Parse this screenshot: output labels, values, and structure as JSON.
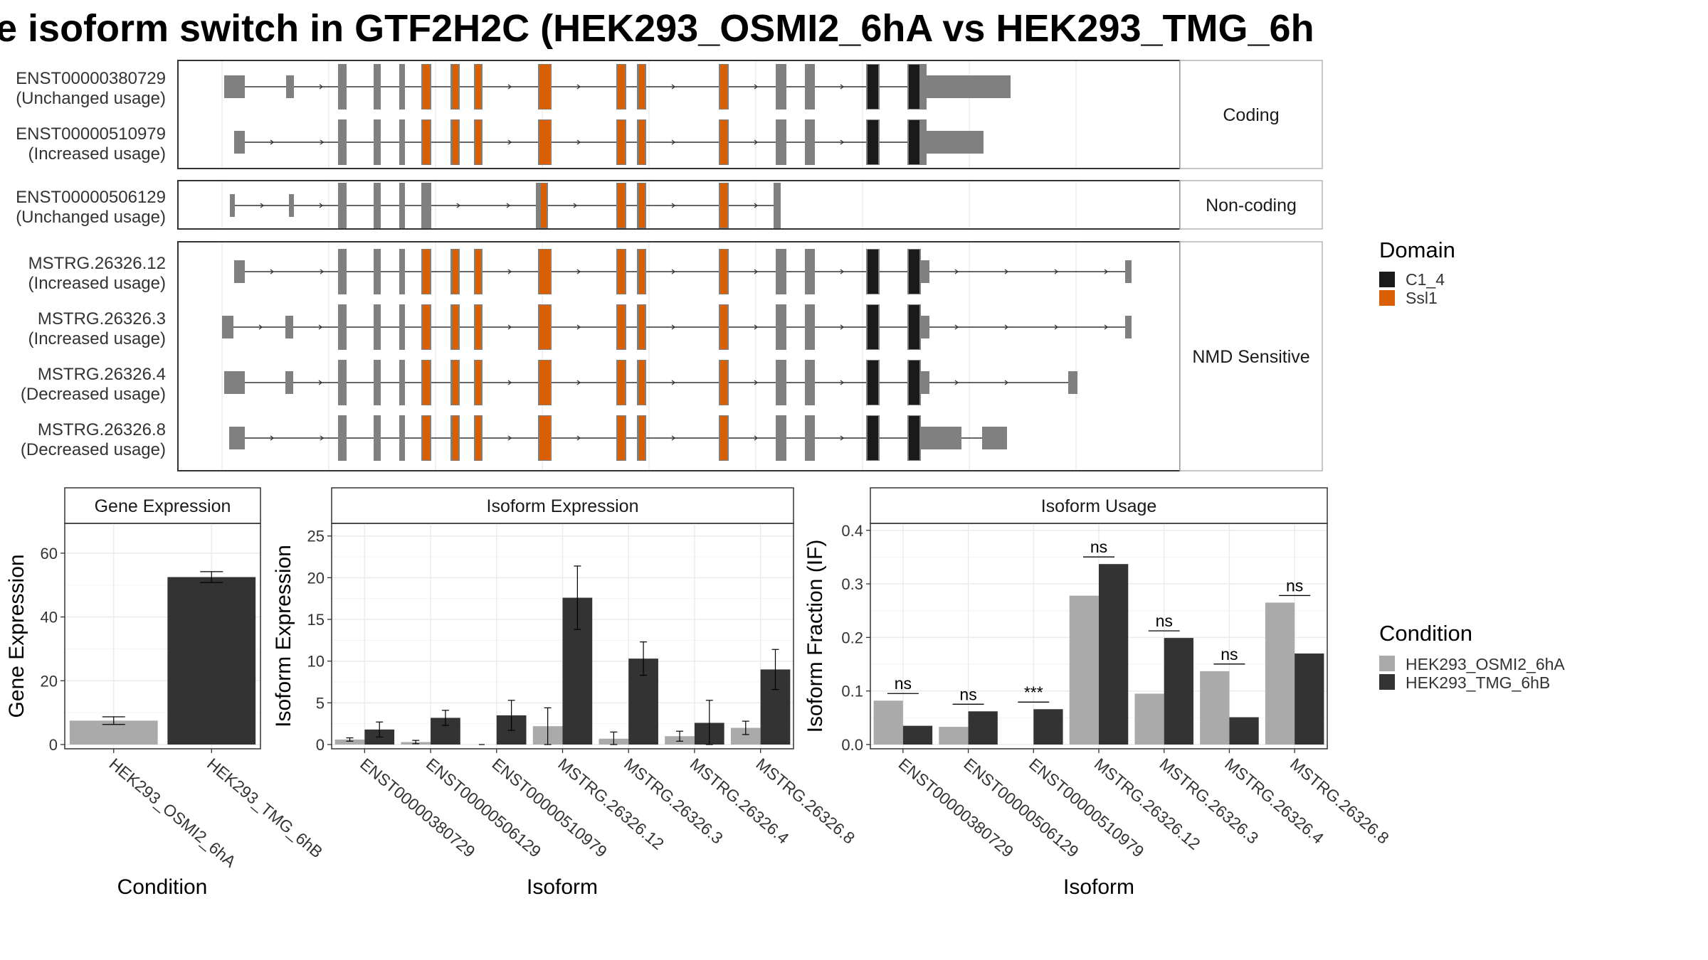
{
  "title": "e isoform switch in GTF2H2C (HEK293_OSMI2_6hA vs HEK293_TMG_6h",
  "colors": {
    "exon": "#808080",
    "C1_4": "#1a1a1a",
    "Ssl1": "#d95f02",
    "condA": "#aaaaaa",
    "condB": "#333333"
  },
  "structure": {
    "panels": [
      {
        "label": "Coding",
        "transcripts": [
          {
            "id": "ENST00000380729",
            "usage": "(Unchanged usage)"
          },
          {
            "id": "ENST00000510979",
            "usage": "(Increased usage)"
          }
        ]
      },
      {
        "label": "Non-coding",
        "transcripts": [
          {
            "id": "ENST00000506129",
            "usage": "(Unchanged usage)"
          }
        ]
      },
      {
        "label": "NMD Sensitive",
        "transcripts": [
          {
            "id": "MSTRG.26326.12",
            "usage": "(Increased usage)"
          },
          {
            "id": "MSTRG.26326.3",
            "usage": "(Increased usage)"
          },
          {
            "id": "MSTRG.26326.4",
            "usage": "(Decreased usage)"
          },
          {
            "id": "MSTRG.26326.8",
            "usage": "(Decreased usage)"
          }
        ]
      }
    ]
  },
  "legend_domain": {
    "title": "Domain",
    "items": [
      {
        "label": "C1_4",
        "color": "#1a1a1a"
      },
      {
        "label": "Ssl1",
        "color": "#d95f02"
      }
    ]
  },
  "legend_condition": {
    "title": "Condition",
    "items": [
      {
        "label": "HEK293_OSMI2_6hA",
        "color": "#aaaaaa"
      },
      {
        "label": "HEK293_TMG_6hB",
        "color": "#333333"
      }
    ]
  },
  "chart_data": [
    {
      "type": "bar",
      "title": "Gene Expression",
      "xlabel": "Condition",
      "ylabel": "Gene Expression",
      "ylim": [
        0,
        68
      ],
      "yticks": [
        0,
        20,
        40,
        60
      ],
      "categories": [
        "HEK293_OSMI2_6hA",
        "HEK293_TMG_6hB"
      ],
      "values": [
        7.5,
        52.5
      ],
      "errors": [
        1.2,
        1.7
      ]
    },
    {
      "type": "bar",
      "title": "Isoform Expression",
      "xlabel": "Isoform",
      "ylabel": "Isoform Expression",
      "ylim": [
        0,
        26
      ],
      "yticks": [
        0,
        5,
        10,
        15,
        20,
        25
      ],
      "categories": [
        "ENST00000380729",
        "ENST00000506129",
        "ENST00000510979",
        "MSTRG.26326.12",
        "MSTRG.26326.3",
        "MSTRG.26326.4",
        "MSTRG.26326.8"
      ],
      "series": [
        {
          "name": "HEK293_OSMI2_6hA",
          "values": [
            0.6,
            0.3,
            0.0,
            2.2,
            0.7,
            1.0,
            2.0
          ],
          "errors": [
            0.2,
            0.2,
            0.0,
            2.2,
            0.8,
            0.6,
            0.8
          ]
        },
        {
          "name": "HEK293_TMG_6hB",
          "values": [
            1.8,
            3.2,
            3.5,
            17.6,
            10.3,
            2.6,
            9.0
          ],
          "errors": [
            0.9,
            0.9,
            1.8,
            3.8,
            2.0,
            2.7,
            2.4
          ]
        }
      ]
    },
    {
      "type": "bar",
      "title": "Isoform Usage",
      "xlabel": "Isoform",
      "ylabel": "Isoform Fraction (IF)",
      "ylim": [
        0,
        0.405
      ],
      "yticks": [
        0.0,
        0.1,
        0.2,
        0.3,
        0.4
      ],
      "categories": [
        "ENST00000380729",
        "ENST00000506129",
        "ENST00000510979",
        "MSTRG.26326.12",
        "MSTRG.26326.3",
        "MSTRG.26326.4",
        "MSTRG.26326.8"
      ],
      "series": [
        {
          "name": "HEK293_OSMI2_6hA",
          "values": [
            0.082,
            0.033,
            0.0,
            0.278,
            0.095,
            0.137,
            0.265
          ]
        },
        {
          "name": "HEK293_TMG_6hB",
          "values": [
            0.035,
            0.062,
            0.066,
            0.337,
            0.199,
            0.051,
            0.17
          ]
        }
      ],
      "significance": [
        "ns",
        "ns",
        "***",
        "ns",
        "ns",
        "ns",
        "ns"
      ]
    }
  ]
}
